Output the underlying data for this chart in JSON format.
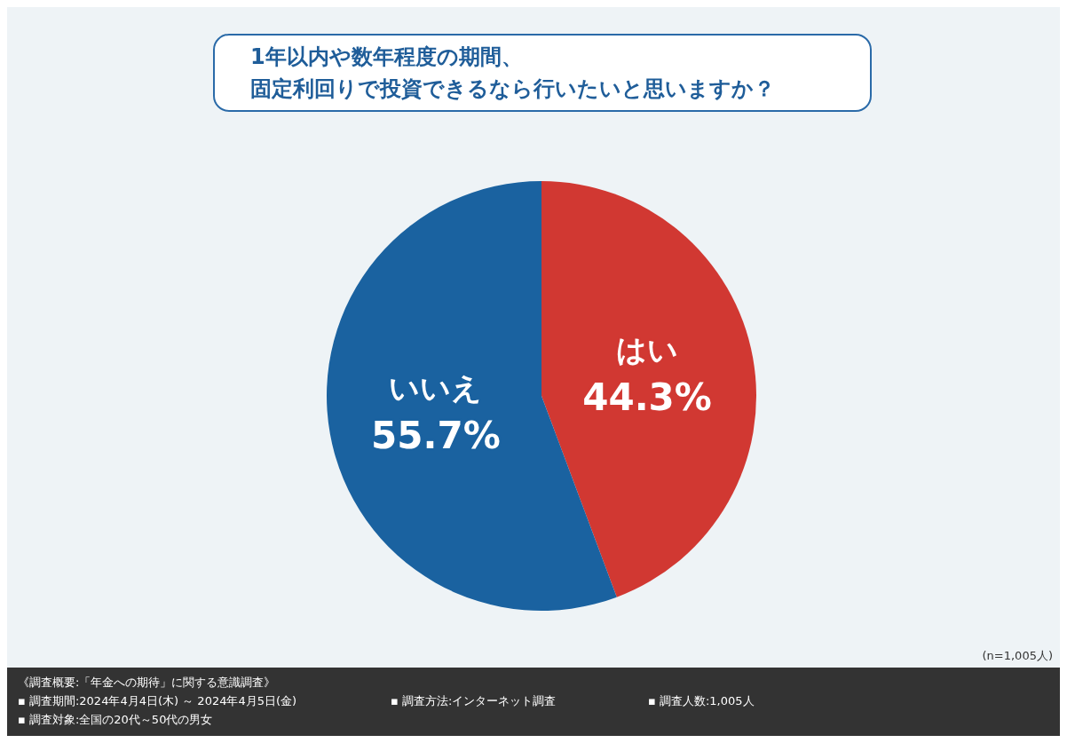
{
  "chart_data": {
    "type": "pie",
    "title": "1年以内や数年程度の期間、固定利回りで投資できるなら行いたいと思いますか？",
    "categories": [
      "はい",
      "いいえ"
    ],
    "values": [
      44.3,
      55.7
    ],
    "colors": [
      "#d13832",
      "#1a62a0"
    ],
    "value_labels": [
      "44.3%",
      "55.7%"
    ],
    "legend": false,
    "annotations": [
      "(n=1,005人)",
      "《調査概要:「年金への期待」に関する意識調査》",
      "▪ 調査期間:2024年4月4日(木) ～ 2024年4月5日(金)",
      "▪ 調査方法:インターネット調査",
      "▪ 調査人数:1,005人",
      "▪ 調査対象:全国の20代～50代の男女"
    ]
  }
}
